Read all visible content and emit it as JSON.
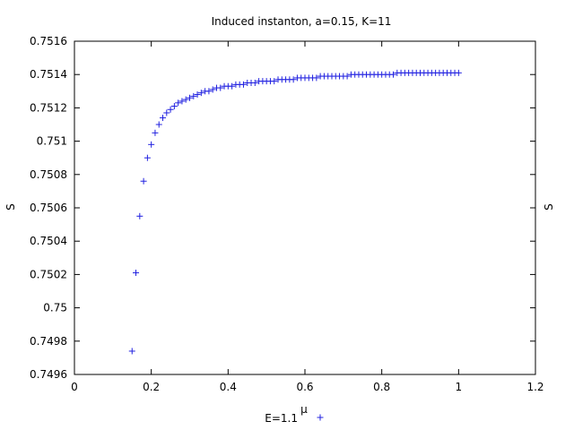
{
  "chart_data": {
    "type": "scatter",
    "title": "Induced instanton, a=0.15, K=11",
    "xlabel": "μ",
    "ylabel": "S",
    "ylabel_right": "S",
    "xlim": [
      0,
      1.2
    ],
    "ylim": [
      0.7496,
      0.7516
    ],
    "x_ticks": [
      "0",
      "0.2",
      "0.4",
      "0.6",
      "0.8",
      "1",
      "1.2"
    ],
    "y_ticks": [
      "0.7496",
      "0.7498",
      "0.75",
      "0.7502",
      "0.7504",
      "0.7506",
      "0.7508",
      "0.751",
      "0.7512",
      "0.7514",
      "0.7516"
    ],
    "grid": false,
    "legend_position": "bottom-center",
    "series": [
      {
        "name": "E=1.1",
        "marker": "+",
        "color": "#2020e0",
        "points": [
          [
            0.15,
            0.74974
          ],
          [
            0.16,
            0.75021
          ],
          [
            0.17,
            0.75055
          ],
          [
            0.18,
            0.75076
          ],
          [
            0.19,
            0.7509
          ],
          [
            0.2,
            0.75098
          ],
          [
            0.21,
            0.75105
          ],
          [
            0.22,
            0.7511
          ],
          [
            0.23,
            0.75114
          ],
          [
            0.24,
            0.75117
          ],
          [
            0.25,
            0.75119
          ],
          [
            0.26,
            0.75121
          ],
          [
            0.27,
            0.75123
          ],
          [
            0.28,
            0.75124
          ],
          [
            0.29,
            0.75125
          ],
          [
            0.3,
            0.75126
          ],
          [
            0.31,
            0.75127
          ],
          [
            0.32,
            0.75128
          ],
          [
            0.33,
            0.75129
          ],
          [
            0.34,
            0.7513
          ],
          [
            0.35,
            0.7513
          ],
          [
            0.36,
            0.75131
          ],
          [
            0.37,
            0.75132
          ],
          [
            0.38,
            0.75132
          ],
          [
            0.39,
            0.75133
          ],
          [
            0.4,
            0.75133
          ],
          [
            0.41,
            0.75133
          ],
          [
            0.42,
            0.75134
          ],
          [
            0.43,
            0.75134
          ],
          [
            0.44,
            0.75134
          ],
          [
            0.45,
            0.75135
          ],
          [
            0.46,
            0.75135
          ],
          [
            0.47,
            0.75135
          ],
          [
            0.48,
            0.75136
          ],
          [
            0.49,
            0.75136
          ],
          [
            0.5,
            0.75136
          ],
          [
            0.51,
            0.75136
          ],
          [
            0.52,
            0.75136
          ],
          [
            0.53,
            0.75137
          ],
          [
            0.54,
            0.75137
          ],
          [
            0.55,
            0.75137
          ],
          [
            0.56,
            0.75137
          ],
          [
            0.57,
            0.75137
          ],
          [
            0.58,
            0.75138
          ],
          [
            0.59,
            0.75138
          ],
          [
            0.6,
            0.75138
          ],
          [
            0.61,
            0.75138
          ],
          [
            0.62,
            0.75138
          ],
          [
            0.63,
            0.75138
          ],
          [
            0.64,
            0.75139
          ],
          [
            0.65,
            0.75139
          ],
          [
            0.66,
            0.75139
          ],
          [
            0.67,
            0.75139
          ],
          [
            0.68,
            0.75139
          ],
          [
            0.69,
            0.75139
          ],
          [
            0.7,
            0.75139
          ],
          [
            0.71,
            0.75139
          ],
          [
            0.72,
            0.7514
          ],
          [
            0.73,
            0.7514
          ],
          [
            0.74,
            0.7514
          ],
          [
            0.75,
            0.7514
          ],
          [
            0.76,
            0.7514
          ],
          [
            0.77,
            0.7514
          ],
          [
            0.78,
            0.7514
          ],
          [
            0.79,
            0.7514
          ],
          [
            0.8,
            0.7514
          ],
          [
            0.81,
            0.7514
          ],
          [
            0.82,
            0.7514
          ],
          [
            0.83,
            0.7514
          ],
          [
            0.84,
            0.75141
          ],
          [
            0.85,
            0.75141
          ],
          [
            0.86,
            0.75141
          ],
          [
            0.87,
            0.75141
          ],
          [
            0.88,
            0.75141
          ],
          [
            0.89,
            0.75141
          ],
          [
            0.9,
            0.75141
          ],
          [
            0.91,
            0.75141
          ],
          [
            0.92,
            0.75141
          ],
          [
            0.93,
            0.75141
          ],
          [
            0.94,
            0.75141
          ],
          [
            0.95,
            0.75141
          ],
          [
            0.96,
            0.75141
          ],
          [
            0.97,
            0.75141
          ],
          [
            0.98,
            0.75141
          ],
          [
            0.99,
            0.75141
          ],
          [
            1.0,
            0.75141
          ]
        ]
      }
    ]
  }
}
